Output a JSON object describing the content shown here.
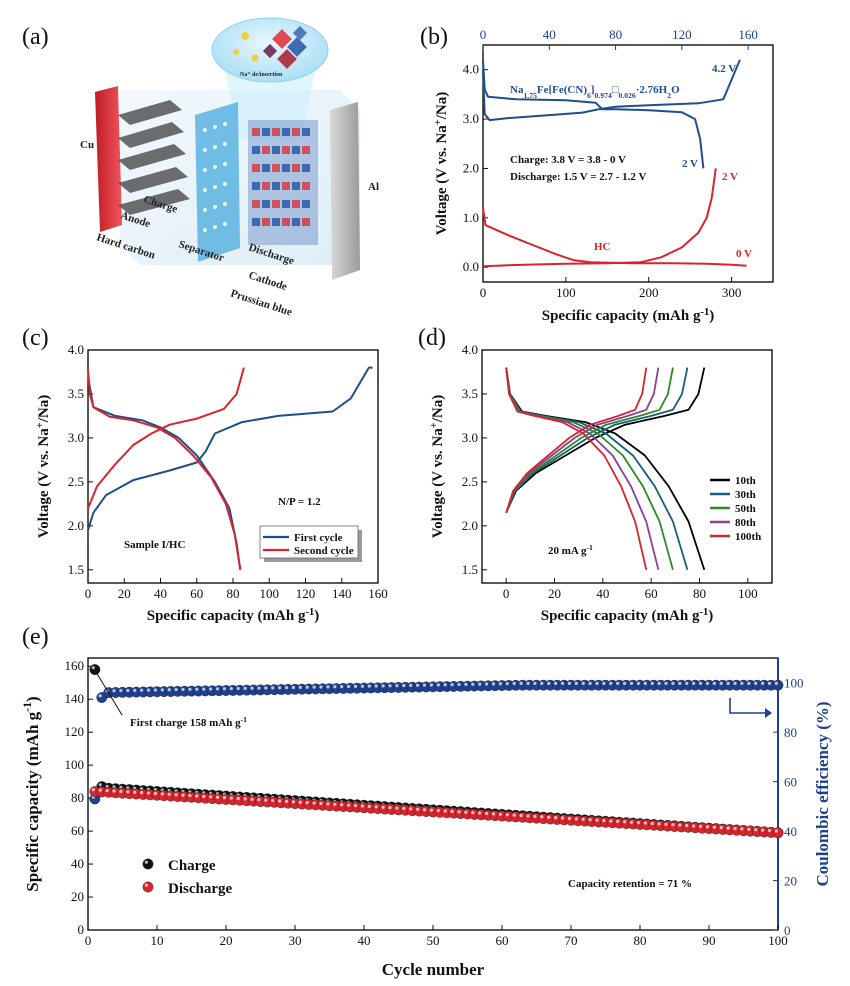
{
  "colors": {
    "blue": "#1f4e8c",
    "red": "#d8242c",
    "black": "#000000",
    "navy": "#1f3f8f",
    "green": "#2e8b22",
    "purple": "#8a3f9a",
    "teal": "#1b5e7a"
  },
  "panel_labels": [
    "(a)",
    "(b)",
    "(c)",
    "(d)",
    "(e)"
  ],
  "schematic": {
    "labels": [
      "Cu",
      "Anode",
      "Hard carbon",
      "Charge",
      "Separator",
      "Discharge",
      "Cathode",
      "Prussian blue",
      "Al",
      "Na⁺ de/insertion"
    ]
  },
  "chart_data": [
    {
      "id": "b",
      "type": "line",
      "xlabel": "Specific capacity (mAh g",
      "xlabel_sup": "-1",
      "xlabel_end": ")",
      "ylabel": "Voltage (V vs. Na",
      "ylabel_sup": "+",
      "ylabel_end": "/Na)",
      "xlim": [
        0,
        350
      ],
      "ylim": [
        -0.3,
        4.5
      ],
      "xticks": [
        0,
        100,
        200,
        300
      ],
      "yticks": [
        0.0,
        1.0,
        2.0,
        3.0,
        4.0
      ],
      "ytick_labels": [
        "0.0",
        "1.0",
        "2.0",
        "3.0",
        "4.0"
      ],
      "top_xlim": [
        0,
        175
      ],
      "top_xticks": [
        0,
        40,
        80,
        120,
        160
      ],
      "series": [
        {
          "name": "cathode charge",
          "axis": "top",
          "color": "blue",
          "points": [
            [
              0,
              4.0
            ],
            [
              1,
              3.1
            ],
            [
              4,
              2.98
            ],
            [
              15,
              3.02
            ],
            [
              40,
              3.08
            ],
            [
              60,
              3.13
            ],
            [
              70,
              3.2
            ],
            [
              80,
              3.25
            ],
            [
              100,
              3.28
            ],
            [
              130,
              3.32
            ],
            [
              145,
              3.4
            ],
            [
              150,
              3.8
            ],
            [
              155,
              4.2
            ]
          ]
        },
        {
          "name": "cathode discharge",
          "axis": "top",
          "color": "blue",
          "points": [
            [
              0,
              4.18
            ],
            [
              1,
              3.6
            ],
            [
              3,
              3.45
            ],
            [
              20,
              3.4
            ],
            [
              50,
              3.38
            ],
            [
              68,
              3.33
            ],
            [
              72,
              3.2
            ],
            [
              80,
              3.2
            ],
            [
              100,
              3.18
            ],
            [
              120,
              3.14
            ],
            [
              128,
              3.0
            ],
            [
              131,
              2.6
            ],
            [
              133,
              2.0
            ]
          ]
        },
        {
          "name": "HC sodiation",
          "axis": "bottom",
          "color": "red",
          "points": [
            [
              0,
              1.2
            ],
            [
              3,
              0.85
            ],
            [
              30,
              0.65
            ],
            [
              60,
              0.45
            ],
            [
              90,
              0.25
            ],
            [
              110,
              0.14
            ],
            [
              130,
              0.1
            ],
            [
              180,
              0.08
            ],
            [
              230,
              0.08
            ],
            [
              270,
              0.07
            ],
            [
              300,
              0.05
            ],
            [
              318,
              0.03
            ]
          ]
        },
        {
          "name": "HC desodiation",
          "axis": "bottom",
          "color": "red",
          "points": [
            [
              0,
              0.02
            ],
            [
              50,
              0.05
            ],
            [
              100,
              0.07
            ],
            [
              150,
              0.08
            ],
            [
              190,
              0.1
            ],
            [
              215,
              0.2
            ],
            [
              240,
              0.4
            ],
            [
              260,
              0.7
            ],
            [
              270,
              1.0
            ],
            [
              276,
              1.4
            ],
            [
              281,
              2.0
            ]
          ]
        }
      ],
      "annotations": {
        "formula_main": "Na",
        "formula_sub1": "1.75",
        "formula_mid": "Fe[Fe(CN)",
        "formula_sub2": "6",
        "formula_mid2": "]",
        "formula_sub3": "0.974",
        "formula_dot": "□",
        "formula_sub4": "0.026",
        "formula_end": "·2.76H",
        "formula_sub5": "2",
        "formula_o": "O",
        "v42": "4.2 V",
        "v2_blue": "2 V",
        "v2_red": "2 V",
        "v0_red": "0 V",
        "hc": "HC",
        "charge_text": "Charge: 3.8 V = 3.8 - 0 V",
        "discharge_text": "Discharge: 1.5 V = 2.7 - 1.2 V"
      }
    },
    {
      "id": "c",
      "type": "line",
      "xlabel": "Specific capacity (mAh g",
      "xlabel_sup": "-1",
      "xlabel_end": ")",
      "ylabel": "Voltage (V vs. Na",
      "ylabel_sup": "+",
      "ylabel_end": "/Na)",
      "xlim": [
        0,
        160
      ],
      "ylim": [
        1.35,
        4.0
      ],
      "xticks": [
        0,
        20,
        40,
        60,
        80,
        100,
        120,
        140,
        160
      ],
      "yticks": [
        1.5,
        2.0,
        2.5,
        3.0,
        3.5,
        4.0
      ],
      "ytick_labels": [
        "1.5",
        "2.0",
        "2.5",
        "3.0",
        "3.5",
        "4.0"
      ],
      "series": [
        {
          "name": "First cycle",
          "color": "blue",
          "points": [
            [
              0,
              1.95
            ],
            [
              3,
              2.15
            ],
            [
              10,
              2.35
            ],
            [
              25,
              2.52
            ],
            [
              45,
              2.63
            ],
            [
              60,
              2.72
            ],
            [
              65,
              2.85
            ],
            [
              70,
              3.05
            ],
            [
              85,
              3.18
            ],
            [
              105,
              3.25
            ],
            [
              135,
              3.3
            ],
            [
              145,
              3.45
            ],
            [
              155,
              3.8
            ],
            [
              157,
              3.8
            ]
          ]
        },
        {
          "name": "First cycle discharge",
          "color": "blue",
          "points": [
            [
              0,
              3.7
            ],
            [
              3,
              3.35
            ],
            [
              15,
              3.25
            ],
            [
              30,
              3.2
            ],
            [
              40,
              3.12
            ],
            [
              50,
              3.0
            ],
            [
              60,
              2.8
            ],
            [
              70,
              2.5
            ],
            [
              78,
              2.2
            ],
            [
              82,
              1.8
            ],
            [
              84,
              1.5
            ]
          ]
        },
        {
          "name": "Second cycle",
          "color": "red",
          "points": [
            [
              0,
              2.2
            ],
            [
              5,
              2.45
            ],
            [
              15,
              2.7
            ],
            [
              25,
              2.92
            ],
            [
              35,
              3.05
            ],
            [
              45,
              3.15
            ],
            [
              60,
              3.22
            ],
            [
              75,
              3.33
            ],
            [
              82,
              3.5
            ],
            [
              86,
              3.8
            ]
          ]
        },
        {
          "name": "Second cycle discharge",
          "color": "red",
          "points": [
            [
              0,
              3.78
            ],
            [
              1,
              3.5
            ],
            [
              3,
              3.35
            ],
            [
              12,
              3.24
            ],
            [
              25,
              3.2
            ],
            [
              38,
              3.12
            ],
            [
              48,
              3.0
            ],
            [
              58,
              2.8
            ],
            [
              68,
              2.55
            ],
            [
              76,
              2.25
            ],
            [
              81,
              1.9
            ],
            [
              84,
              1.5
            ]
          ]
        }
      ],
      "legend": [
        "First cycle",
        "Second cycle"
      ],
      "annotations": {
        "np": "N/P = 1.2",
        "sample": "Sample I/HC"
      }
    },
    {
      "id": "d",
      "type": "line",
      "xlabel": "Specific capacity (mAh g",
      "xlabel_sup": "-1",
      "xlabel_end": ")",
      "ylabel": "Voltage (V vs. Na",
      "ylabel_sup": "+",
      "ylabel_end": "/Na)",
      "xlim": [
        -10,
        110
      ],
      "ylim": [
        1.35,
        4.0
      ],
      "xticks": [
        0,
        20,
        40,
        60,
        80,
        100
      ],
      "yticks": [
        1.5,
        2.0,
        2.5,
        3.0,
        3.5,
        4.0
      ],
      "ytick_labels": [
        "1.5",
        "2.0",
        "2.5",
        "3.0",
        "3.5",
        "4.0"
      ],
      "series": [
        {
          "name": "10th",
          "color": "black",
          "cap": 82
        },
        {
          "name": "30th",
          "color": "teal",
          "cap": 75
        },
        {
          "name": "50th",
          "color": "green",
          "cap": 69
        },
        {
          "name": "80th",
          "color": "purple",
          "cap": 63
        },
        {
          "name": "100th",
          "color": "red",
          "cap": 58
        }
      ],
      "annotations": {
        "rate": "20 mA g",
        "rate_sup": "-1"
      }
    },
    {
      "id": "e",
      "type": "scatter",
      "xlabel": "Cycle number",
      "ylabel": "Specific capacity (mAh g",
      "ylabel_sup": "-1",
      "ylabel_end": ")",
      "y2label": "Coulombic efficiency (%)",
      "xlim": [
        0,
        100
      ],
      "ylim": [
        0,
        165
      ],
      "y2lim": [
        0,
        110
      ],
      "xticks": [
        0,
        10,
        20,
        30,
        40,
        50,
        60,
        70,
        80,
        90,
        100
      ],
      "yticks": [
        0,
        20,
        40,
        60,
        80,
        100,
        120,
        140,
        160
      ],
      "y2ticks": [
        0,
        20,
        40,
        60,
        80,
        100
      ],
      "series": [
        {
          "name": "Charge",
          "color": "black",
          "first": 158,
          "second": 87,
          "start": 86,
          "end": 59
        },
        {
          "name": "Discharge",
          "color": "red",
          "first": 84,
          "start": 84,
          "end": 59
        },
        {
          "name": "Coulombic efficiency",
          "color": "navy",
          "first": 53,
          "second": 94,
          "start": 96,
          "end": 99
        }
      ],
      "legend": [
        "Charge",
        "Discharge"
      ],
      "annotations": {
        "first_charge": "First charge 158 mAh g",
        "first_charge_sup": "-1",
        "retention": "Capacity retention = 71 %"
      }
    }
  ]
}
